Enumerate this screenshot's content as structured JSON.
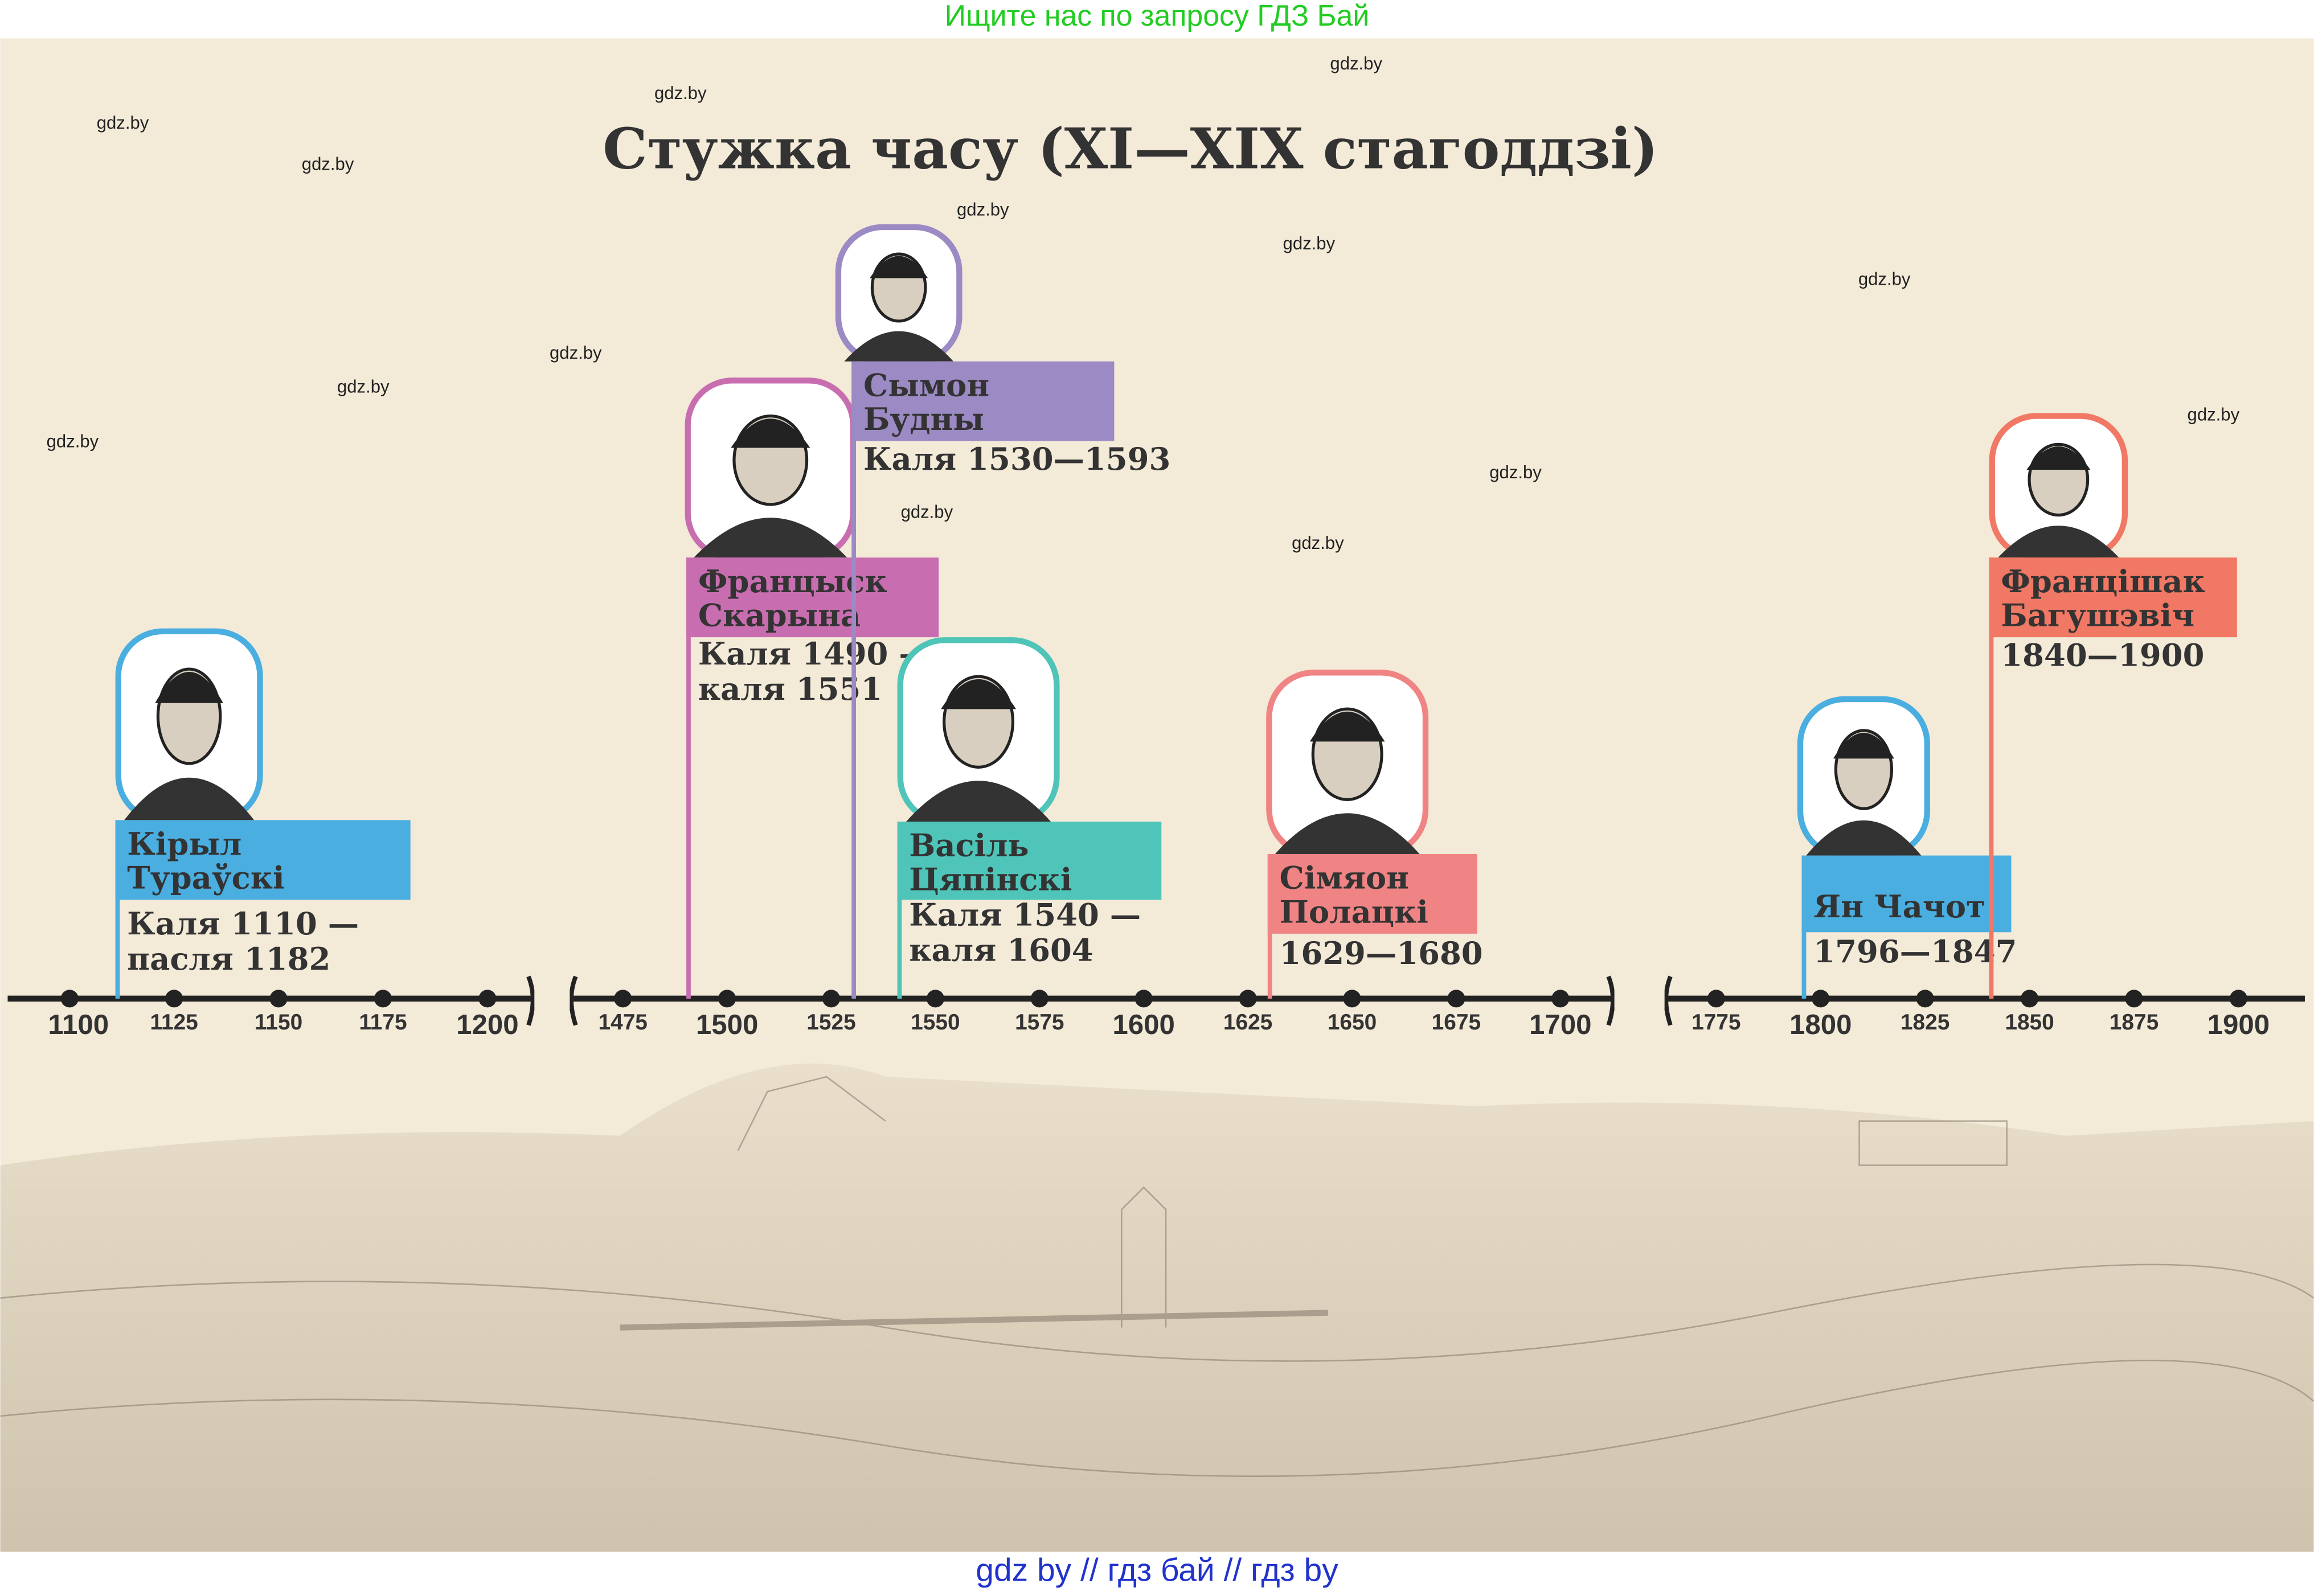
{
  "header": {
    "text": "Ищите нас по запросу ГДЗ Бай"
  },
  "title": "Стужка часу (XI—XIX стагоддзі)",
  "timeline": {
    "segments": [
      {
        "ticks": [
          1100,
          1125,
          1150,
          1175,
          1200
        ]
      },
      {
        "ticks": [
          1475,
          1500,
          1525,
          1550,
          1575,
          1600,
          1625,
          1650,
          1675,
          1700
        ]
      },
      {
        "ticks": [
          1775,
          1800,
          1825,
          1850,
          1875,
          1900
        ]
      }
    ]
  },
  "persons": [
    {
      "name": [
        "Кірыл",
        "Тураўскі"
      ],
      "dates": [
        "Каля 1110 —",
        "пасля 1182"
      ],
      "color": "#4aaee0"
    },
    {
      "name": [
        "Францыск",
        "Скарына"
      ],
      "dates": [
        "Каля 1490 —",
        "каля 1551"
      ],
      "color": "#c86eb0"
    },
    {
      "name": [
        "Сымон",
        "Будны"
      ],
      "dates": [
        "Каля 1530—1593"
      ],
      "color": "#9c8ac4"
    },
    {
      "name": [
        "Васіль",
        "Цяпінскі"
      ],
      "dates": [
        "Каля 1540 —",
        "каля 1604"
      ],
      "color": "#4fc4b8"
    },
    {
      "name": [
        "Сімяон",
        "Полацкі"
      ],
      "dates": [
        "1629—1680"
      ],
      "color": "#f08484"
    },
    {
      "name": [
        "Ян Чачот"
      ],
      "dates": [
        "1796—1847"
      ],
      "color": "#4aaee0"
    },
    {
      "name": [
        "Францішак",
        "Багушэвіч"
      ],
      "dates": [
        "1840—1900"
      ],
      "color": "#f07864"
    }
  ],
  "watermarks": [
    "gdz.by",
    "gdz.by",
    "gdz.by",
    "gdz.by",
    "gdz.by",
    "gdz.by",
    "gdz.by",
    "gdz.by",
    "gdz.by",
    "gdz.by",
    "gdz.by",
    "gdz.by",
    "gdz.by",
    "gdz.by"
  ],
  "footer": {
    "text": "gdz by  //  гдз бай  //  гдз by"
  }
}
